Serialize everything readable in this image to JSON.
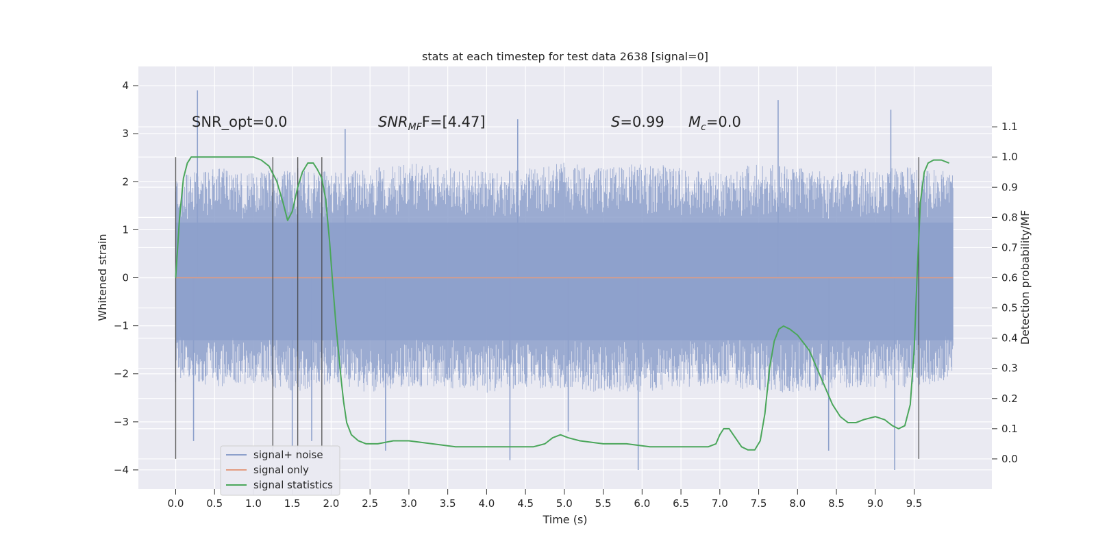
{
  "chart_data": {
    "type": "line",
    "title": "stats at each timestep for test data 2638 [signal=0]",
    "xlabel": "Time (s)",
    "ylabel": "Whitened strain",
    "ylabel_right": "Detection probability/MF",
    "xlim": [
      -0.48,
      10.5
    ],
    "ylim": [
      -4.4,
      4.4
    ],
    "ylim_right": [
      -0.1,
      1.3
    ],
    "grid": true,
    "legend_position": "lower-left",
    "x_ticks": [
      0.0,
      0.5,
      1.0,
      1.5,
      2.0,
      2.5,
      3.0,
      3.5,
      4.0,
      4.5,
      5.0,
      5.5,
      6.0,
      6.5,
      7.0,
      7.5,
      8.0,
      8.5,
      9.0,
      9.5
    ],
    "x_tick_labels": [
      "0.0",
      "0.5",
      "1.0",
      "1.5",
      "2.0",
      "2.5",
      "3.0",
      "3.5",
      "4.0",
      "4.5",
      "5.0",
      "5.5",
      "6.0",
      "6.5",
      "7.0",
      "7.5",
      "8.0",
      "8.5",
      "9.0",
      "9.5"
    ],
    "y_ticks": [
      4,
      3,
      2,
      1,
      0,
      -1,
      -2,
      -3,
      -4
    ],
    "y_tick_labels": [
      "4",
      "3",
      "2",
      "1",
      "0",
      "−1",
      "−2",
      "−3",
      "−4"
    ],
    "y_right_ticks": [
      1.1,
      1.0,
      0.9,
      0.8,
      0.7,
      0.6,
      0.5,
      0.4,
      0.3,
      0.2,
      0.1,
      0.0
    ],
    "y_right_tick_labels": [
      "1.1",
      "1.0",
      "0.9",
      "0.8",
      "0.7",
      "0.6",
      "0.5",
      "0.4",
      "0.3",
      "0.2",
      "0.1",
      "0.0"
    ],
    "annotations": {
      "snr_opt": "SNR_opt=0.0",
      "snr_mf_main": "SNR",
      "snr_mf_sub": "MF",
      "snr_mf_rest": "F=[4.47]",
      "s_symbol": "S",
      "s_value": "=0.99",
      "mc_symbol": "M",
      "mc_sub": "c",
      "mc_value": "=0.0"
    },
    "vertical_markers_x": [
      0.0,
      1.25,
      1.57,
      1.88,
      9.56
    ],
    "noise_envelope": {
      "x": [
        0.0,
        0.5,
        1.0,
        1.5,
        2.0,
        2.5,
        3.0,
        3.5,
        4.0,
        4.5,
        5.0,
        5.5,
        6.0,
        6.5,
        7.0,
        7.5,
        8.0,
        8.5,
        9.0,
        9.5,
        10.0
      ],
      "upper_typical": [
        2.1,
        2.3,
        2.2,
        2.3,
        2.2,
        2.3,
        2.4,
        2.3,
        2.2,
        2.3,
        2.4,
        2.3,
        2.4,
        2.3,
        2.2,
        2.4,
        2.3,
        2.2,
        2.3,
        2.3,
        2.2
      ],
      "lower_typical": [
        -2.2,
        -2.3,
        -2.2,
        -2.4,
        -2.2,
        -2.4,
        -2.3,
        -2.3,
        -2.4,
        -2.3,
        -2.3,
        -2.4,
        -2.4,
        -2.3,
        -2.2,
        -2.4,
        -2.4,
        -2.3,
        -2.3,
        -2.3,
        -2.1
      ],
      "peaks": [
        [
          0.28,
          3.9
        ],
        [
          0.23,
          -3.4
        ],
        [
          1.5,
          -3.5
        ],
        [
          1.75,
          -3.4
        ],
        [
          2.7,
          -3.6
        ],
        [
          4.3,
          -3.8
        ],
        [
          7.75,
          3.7
        ],
        [
          8.4,
          -3.6
        ],
        [
          5.95,
          -4.0
        ],
        [
          9.2,
          3.5
        ],
        [
          9.25,
          -4.0
        ],
        [
          2.18,
          3.1
        ],
        [
          4.4,
          3.3
        ],
        [
          5.05,
          -3.2
        ]
      ]
    },
    "series": [
      {
        "name": "signal+ noise",
        "color": "#8da0cb",
        "x_range": [
          0.0,
          10.0
        ]
      },
      {
        "name": "signal only",
        "color": "#e39b80",
        "x": [
          0.0,
          10.0
        ],
        "y": [
          0.0,
          0.0
        ]
      },
      {
        "name": "signal statistics",
        "color": "#4aa65a",
        "axis": "right",
        "x": [
          0.0,
          0.05,
          0.1,
          0.15,
          0.2,
          0.3,
          0.5,
          0.7,
          0.9,
          1.0,
          1.1,
          1.2,
          1.3,
          1.38,
          1.44,
          1.5,
          1.57,
          1.63,
          1.7,
          1.77,
          1.82,
          1.88,
          1.93,
          1.98,
          2.02,
          2.06,
          2.1,
          2.13,
          2.16,
          2.2,
          2.26,
          2.35,
          2.45,
          2.6,
          2.8,
          3.0,
          3.3,
          3.6,
          4.0,
          4.3,
          4.6,
          4.75,
          4.85,
          4.95,
          5.05,
          5.2,
          5.5,
          5.8,
          6.1,
          6.4,
          6.65,
          6.85,
          6.95,
          7.0,
          7.05,
          7.12,
          7.2,
          7.28,
          7.36,
          7.45,
          7.52,
          7.58,
          7.64,
          7.7,
          7.76,
          7.82,
          7.9,
          8.0,
          8.15,
          8.3,
          8.45,
          8.55,
          8.65,
          8.75,
          8.85,
          9.0,
          9.12,
          9.22,
          9.3,
          9.38,
          9.45,
          9.5,
          9.54,
          9.58,
          9.63,
          9.68,
          9.75,
          9.85,
          9.95
        ],
        "y": [
          0.6,
          0.8,
          0.93,
          0.98,
          1.0,
          1.0,
          1.0,
          1.0,
          1.0,
          1.0,
          0.99,
          0.97,
          0.92,
          0.85,
          0.79,
          0.82,
          0.9,
          0.95,
          0.98,
          0.98,
          0.96,
          0.93,
          0.86,
          0.72,
          0.58,
          0.45,
          0.34,
          0.26,
          0.19,
          0.12,
          0.08,
          0.06,
          0.05,
          0.05,
          0.06,
          0.06,
          0.05,
          0.04,
          0.04,
          0.04,
          0.04,
          0.05,
          0.07,
          0.08,
          0.07,
          0.06,
          0.05,
          0.05,
          0.04,
          0.04,
          0.04,
          0.04,
          0.05,
          0.08,
          0.1,
          0.1,
          0.07,
          0.04,
          0.03,
          0.03,
          0.06,
          0.15,
          0.3,
          0.39,
          0.43,
          0.44,
          0.43,
          0.41,
          0.36,
          0.27,
          0.18,
          0.14,
          0.12,
          0.12,
          0.13,
          0.14,
          0.13,
          0.11,
          0.1,
          0.11,
          0.18,
          0.36,
          0.62,
          0.85,
          0.95,
          0.98,
          0.99,
          0.99,
          0.98
        ]
      }
    ]
  }
}
